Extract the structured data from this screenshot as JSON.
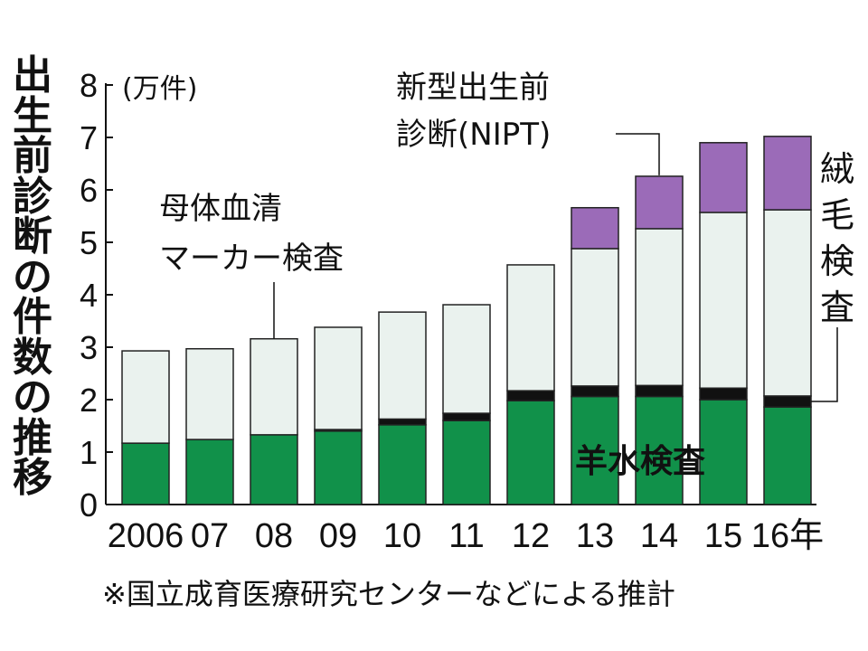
{
  "title": "出生前診断の件数の推移",
  "source_note": "※国立成育医療研究センターなどによる推計",
  "colors": {
    "amniocentesis": "#11914a",
    "cvs": "#111111",
    "maternal_serum": "#eaf2ee",
    "nipt": "#9b6bb8",
    "outline": "#222222"
  },
  "chart_data": {
    "type": "bar",
    "stacked": true,
    "ylabel": "(万件)",
    "ylim": [
      0,
      8
    ],
    "yticks": [
      "0",
      "1",
      "2",
      "3",
      "4",
      "5",
      "6",
      "7",
      "8"
    ],
    "categories": [
      "2006",
      "07",
      "08",
      "09",
      "10",
      "11",
      "12",
      "13",
      "14",
      "15",
      "16年"
    ],
    "series": [
      {
        "key": "amniocentesis",
        "name": "羊水検査",
        "values": [
          1.17,
          1.24,
          1.33,
          1.4,
          1.52,
          1.6,
          1.98,
          2.06,
          2.06,
          2.0,
          1.86
        ]
      },
      {
        "key": "cvs",
        "name": "絨毛検査",
        "values": [
          0,
          0,
          0,
          0.03,
          0.11,
          0.14,
          0.19,
          0.2,
          0.21,
          0.22,
          0.21
        ]
      },
      {
        "key": "maternal_serum",
        "name": "母体血清マーカー検査",
        "values": [
          1.76,
          1.73,
          1.83,
          1.95,
          2.04,
          2.07,
          2.4,
          2.62,
          2.99,
          3.35,
          3.55
        ]
      },
      {
        "key": "nipt",
        "name": "新型出生前診断(NIPT)",
        "values": [
          0,
          0,
          0,
          0,
          0,
          0,
          0,
          0.78,
          1.0,
          1.33,
          1.4
        ]
      }
    ],
    "annotations": {
      "maternal_serum_line1": "母体血清",
      "maternal_serum_line2": "マーカー検査",
      "nipt_line1": "新型出生前",
      "nipt_line2": "診断(NIPT)",
      "cvs_chars": [
        "絨",
        "毛",
        "検",
        "査"
      ],
      "amnio": "羊水検査"
    }
  }
}
